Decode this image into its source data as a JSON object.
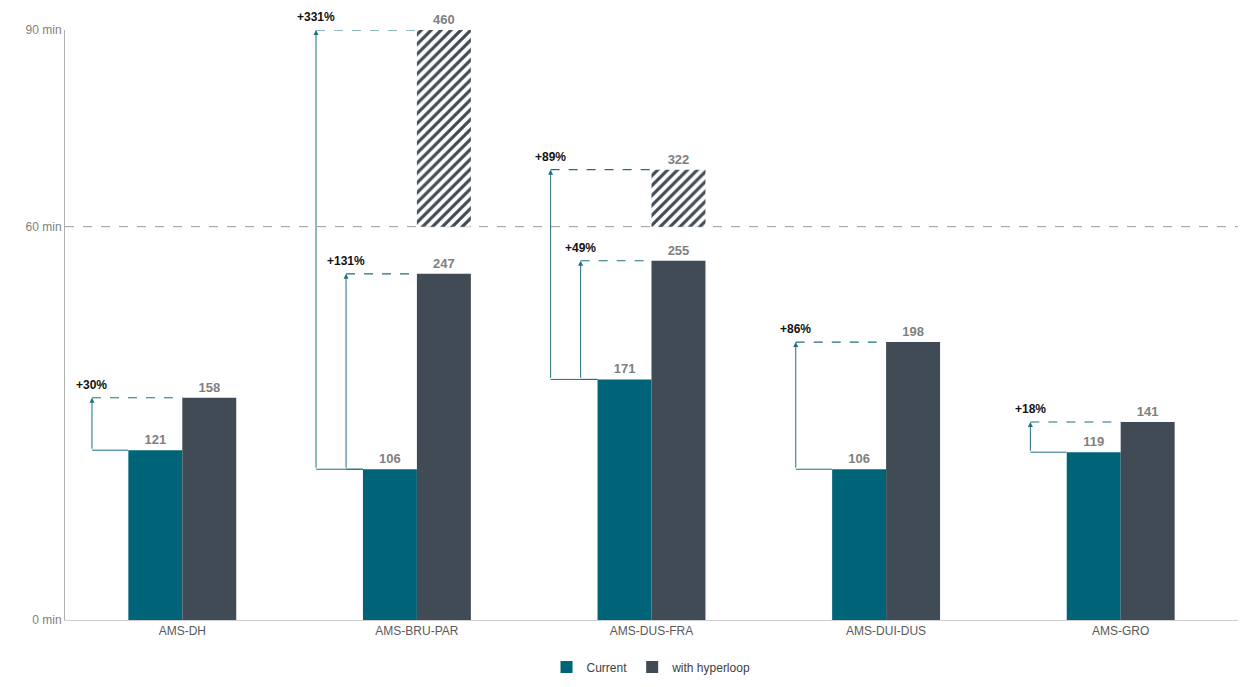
{
  "chart_data": {
    "type": "bar",
    "categories": [
      "AMS-DH",
      "AMS-BRU-PAR",
      "AMS-DUS-FRA",
      "AMS-DUI-DUS",
      "AMS-GRO"
    ],
    "series": [
      {
        "name": "Current",
        "color": "#006478",
        "values": [
          25.9,
          23.0,
          36.7,
          23.0,
          25.6
        ],
        "counts": [
          121,
          106,
          171,
          106,
          119
        ]
      },
      {
        "name": "with hyperloop",
        "color": "#404b55",
        "values": [
          33.9,
          52.8,
          54.8,
          42.4,
          30.2
        ],
        "counts": [
          158,
          247,
          255,
          198,
          141
        ],
        "increase_labels": [
          "+30%",
          "+131%",
          "+49%",
          "+86%",
          "+18%"
        ],
        "beyond": {
          "base": 60,
          "values": [
            null,
            30,
            8.7,
            null,
            null
          ],
          "counts": [
            null,
            460,
            322,
            null,
            null
          ],
          "increase_labels": [
            null,
            "+331%",
            "+89%",
            null,
            null
          ]
        }
      }
    ],
    "ylim": [
      0,
      90
    ],
    "yticks": [
      {
        "value": 0,
        "label": "0 min"
      },
      {
        "value": 60,
        "label": "60 min"
      },
      {
        "value": 90,
        "label": "90 min"
      }
    ],
    "reference_lines": [
      60
    ],
    "grid": false,
    "legend": "bottom"
  }
}
